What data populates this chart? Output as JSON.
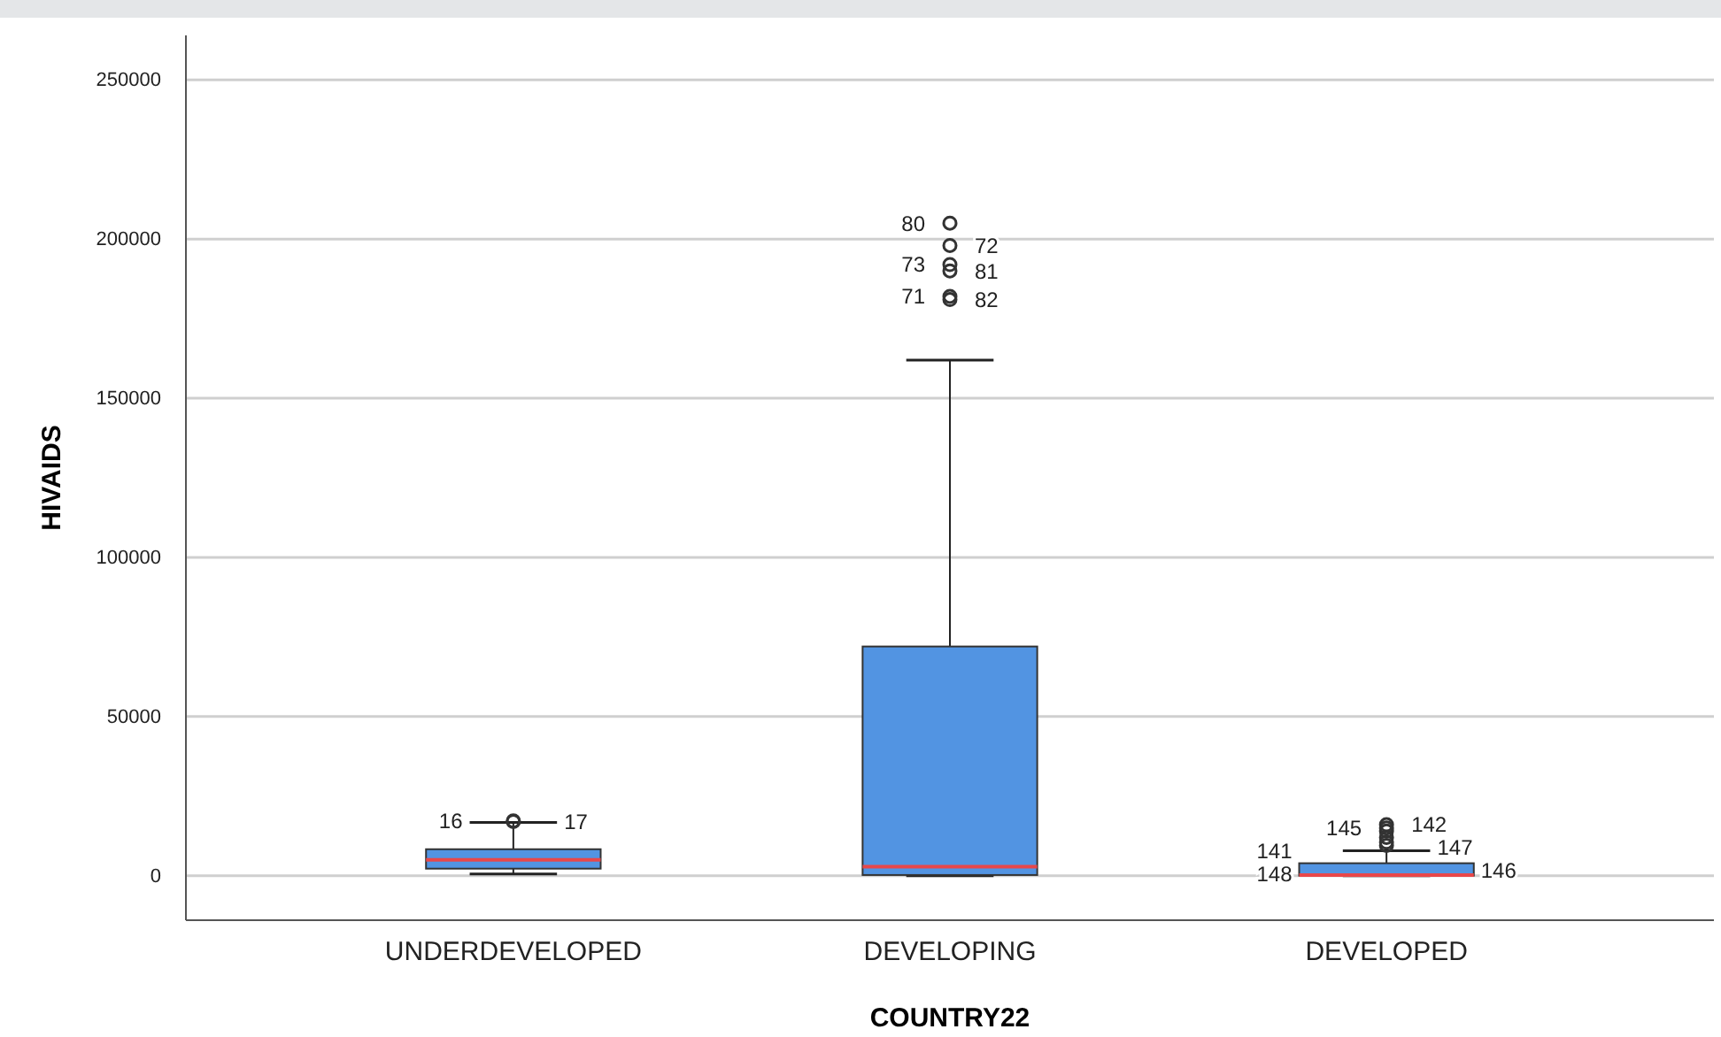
{
  "chart_data": {
    "type": "box",
    "xlabel": "COUNTRY22",
    "ylabel": "HIVAIDS",
    "categories": [
      "UNDERDEVELOPED",
      "DEVELOPING",
      "DEVELOPED"
    ],
    "boxes": [
      {
        "low": 500,
        "q1": 2200,
        "median": 5000,
        "q3": 8300,
        "high": 16700,
        "outliers": [
          17200,
          17000
        ]
      },
      {
        "low": 0,
        "q1": 200,
        "median": 2800,
        "q3": 72000,
        "high": 162000,
        "outliers": [
          205000,
          198000,
          192000,
          190000,
          182000,
          181000
        ]
      },
      {
        "low": 0,
        "q1": 0,
        "median": 200,
        "q3": 3900,
        "high": 7800,
        "outliers": [
          14000,
          16000,
          15000,
          12000,
          10500,
          9500
        ]
      }
    ],
    "color": "#5294e2",
    "ylim": [
      -14000,
      264000
    ],
    "yticks": [
      0,
      50000,
      100000,
      150000,
      200000,
      250000
    ],
    "grid": "y",
    "annotations": [
      "16",
      "17",
      "80",
      "72",
      "73",
      "81",
      "71",
      "82",
      "141",
      "142",
      "145",
      "147",
      "148",
      "146"
    ]
  }
}
